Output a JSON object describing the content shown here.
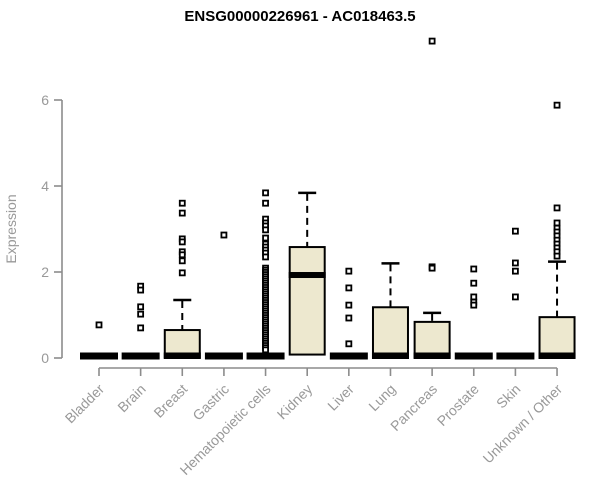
{
  "title": "ENSG00000226961 - AC018463.5",
  "colors": {
    "box_fill": "#EDE8CF",
    "box_stroke": "#000000",
    "axis": "#8c8c8c",
    "tick_label": "#999999",
    "axis_label": "#999999",
    "title": "#000000",
    "background": "#ffffff"
  },
  "chart_data": {
    "type": "boxplot",
    "title": "ENSG00000226961 - AC018463.5",
    "xlabel": "",
    "ylabel": "Expression",
    "ylim": [
      0,
      6
    ],
    "yticks": [
      0,
      2,
      4,
      6
    ],
    "grid": false,
    "legend": "none",
    "categories": [
      "Bladder",
      "Brain",
      "Breast",
      "Gastric",
      "Hematopoietic cells",
      "Kidney",
      "Liver",
      "Lung",
      "Pancreas",
      "Prostate",
      "Skin",
      "Unknown / Other"
    ],
    "series": [
      {
        "category": "Bladder",
        "collapsed": true,
        "q1": 0,
        "median": 0,
        "q3": 0,
        "whisker_low": 0,
        "whisker_high": 0,
        "outliers": [
          0.77
        ]
      },
      {
        "category": "Brain",
        "collapsed": true,
        "q1": 0,
        "median": 0,
        "q3": 0,
        "whisker_low": 0,
        "whisker_high": 0,
        "outliers": [
          1.67,
          1.58,
          1.19,
          1.02,
          0.7
        ]
      },
      {
        "category": "Breast",
        "collapsed": false,
        "q1": 0,
        "median": 0,
        "q3": 0.65,
        "whisker_low": 0,
        "whisker_high": 1.35,
        "outliers": [
          3.6,
          3.37,
          2.77,
          2.7,
          2.47,
          2.4,
          2.26,
          1.98
        ]
      },
      {
        "category": "Gastric",
        "collapsed": true,
        "q1": 0,
        "median": 0,
        "q3": 0,
        "whisker_low": 0,
        "whisker_high": 0,
        "outliers": [
          2.86
        ]
      },
      {
        "category": "Hematopoietic cells",
        "collapsed": true,
        "q1": 0,
        "median": 0,
        "q3": 0,
        "whisker_low": 0,
        "whisker_high": 0,
        "outliers": [
          3.84,
          3.6,
          3.23,
          3.14,
          3.07,
          2.98,
          2.79,
          2.65,
          2.58,
          2.51,
          2.44,
          2.35,
          2.09,
          2.04,
          1.99,
          1.94,
          1.89,
          1.84,
          1.79,
          1.74,
          1.69,
          1.64,
          1.59,
          1.54,
          1.49,
          1.44,
          1.39,
          1.34,
          1.29,
          1.24,
          1.19,
          1.14,
          1.09,
          1.04,
          0.99,
          0.94,
          0.89,
          0.84,
          0.79,
          0.74,
          0.69,
          0.64,
          0.59,
          0.54,
          0.49,
          0.44,
          0.39,
          0.34,
          0.29,
          0.24,
          0.19
        ]
      },
      {
        "category": "Kidney",
        "collapsed": false,
        "q1": 0.08,
        "median": 1.93,
        "q3": 2.58,
        "whisker_low": 0.08,
        "whisker_high": 3.84,
        "outliers": []
      },
      {
        "category": "Liver",
        "collapsed": true,
        "q1": 0,
        "median": 0,
        "q3": 0,
        "whisker_low": 0,
        "whisker_high": 0,
        "outliers": [
          2.02,
          1.63,
          1.23,
          0.93,
          0.33
        ]
      },
      {
        "category": "Lung",
        "collapsed": false,
        "q1": 0,
        "median": 0,
        "q3": 1.18,
        "whisker_low": 0,
        "whisker_high": 2.2,
        "outliers": []
      },
      {
        "category": "Pancreas",
        "collapsed": false,
        "q1": 0,
        "median": 0,
        "q3": 0.84,
        "whisker_low": 0,
        "whisker_high": 1.05,
        "outliers": [
          7.37,
          2.12,
          2.09
        ]
      },
      {
        "category": "Prostate",
        "collapsed": true,
        "q1": 0,
        "median": 0,
        "q3": 0,
        "whisker_low": 0,
        "whisker_high": 0,
        "outliers": [
          2.07,
          1.74,
          1.42,
          1.3,
          1.23
        ]
      },
      {
        "category": "Skin",
        "collapsed": true,
        "q1": 0,
        "median": 0,
        "q3": 0,
        "whisker_low": 0,
        "whisker_high": 0,
        "outliers": [
          2.95,
          2.21,
          2.02,
          1.42
        ]
      },
      {
        "category": "Unknown / Other",
        "collapsed": false,
        "q1": 0,
        "median": 0,
        "q3": 0.95,
        "whisker_low": 0,
        "whisker_high": 2.24,
        "outliers": [
          5.88,
          3.49,
          3.14,
          3.02,
          2.93,
          2.84,
          2.74,
          2.65,
          2.56,
          2.47,
          2.37
        ]
      }
    ]
  }
}
